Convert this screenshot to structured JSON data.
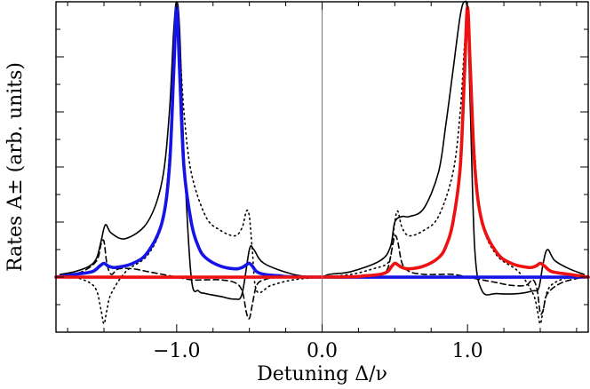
{
  "chart_data": {
    "type": "line",
    "title": "",
    "xlabel": "Detuning Δ/ν",
    "ylabel": "Rates A± (arb. units)",
    "xlim": [
      -1.83,
      1.83
    ],
    "ylim": [
      -0.2,
      1.0
    ],
    "x_ticks": [
      {
        "value": -1.0,
        "label": "−1.0"
      },
      {
        "value": 0.0,
        "label": "0.0"
      },
      {
        "value": 1.0,
        "label": "1.0"
      }
    ],
    "x_minor_step": 0.25,
    "y_minor_step": 0.1,
    "zero_line": true,
    "grid": false,
    "legend": "none",
    "colors": {
      "blue": "#1414e6",
      "red": "#ee1111",
      "black": "#000000",
      "zero_line": "#777777"
    },
    "series": [
      {
        "style": "solid-black",
        "x": [
          -1.8,
          -1.7,
          -1.6,
          -1.55,
          -1.52,
          -1.49,
          -1.45,
          -1.35,
          -1.2,
          -1.1,
          -1.05,
          -1.02,
          -1.0,
          -0.98,
          -0.95,
          -0.9,
          -0.85,
          -0.8,
          -0.7,
          -0.6,
          -0.55,
          -0.5,
          -0.47,
          -0.4,
          -0.2,
          -0.05,
          0.0,
          0.05,
          0.2,
          0.4,
          0.47,
          0.5,
          0.55,
          0.6,
          0.7,
          0.8,
          0.85,
          0.9,
          0.95,
          0.98,
          1.0,
          1.02,
          1.05,
          1.1,
          1.2,
          1.35,
          1.45,
          1.49,
          1.52,
          1.55,
          1.6,
          1.7,
          1.8
        ],
        "y": [
          0.01,
          0.02,
          0.04,
          0.07,
          0.13,
          0.19,
          0.16,
          0.14,
          0.2,
          0.35,
          0.6,
          0.9,
          1.0,
          0.9,
          0.45,
          0.0,
          -0.05,
          -0.06,
          -0.07,
          -0.08,
          -0.06,
          0.1,
          0.1,
          0.05,
          0.01,
          0.0,
          0.0,
          0.01,
          0.02,
          0.06,
          0.11,
          0.2,
          0.22,
          0.22,
          0.25,
          0.38,
          0.55,
          0.75,
          0.95,
          1.0,
          0.95,
          0.6,
          0.1,
          -0.05,
          -0.06,
          -0.06,
          -0.05,
          -0.04,
          0.05,
          0.1,
          0.06,
          0.03,
          0.01
        ]
      },
      {
        "style": "dotted-black",
        "x": [
          -1.8,
          -1.7,
          -1.6,
          -1.55,
          -1.52,
          -1.5,
          -1.48,
          -1.45,
          -1.35,
          -1.2,
          -1.1,
          -1.05,
          -1.02,
          -1.0,
          -0.98,
          -0.95,
          -0.9,
          -0.8,
          -0.7,
          -0.6,
          -0.55,
          -0.52,
          -0.5,
          -0.48,
          -0.45,
          -0.35,
          -0.2,
          0.0,
          0.2,
          0.35,
          0.45,
          0.48,
          0.5,
          0.52,
          0.55,
          0.6,
          0.7,
          0.8,
          0.9,
          0.95,
          0.98,
          1.0,
          1.02,
          1.05,
          1.1,
          1.2,
          1.35,
          1.45,
          1.48,
          1.5,
          1.52,
          1.55,
          1.6,
          1.7,
          1.8
        ],
        "y": [
          0.01,
          0.0,
          -0.02,
          -0.05,
          -0.12,
          -0.17,
          -0.12,
          -0.06,
          0.02,
          0.08,
          0.2,
          0.45,
          0.8,
          0.95,
          0.85,
          0.6,
          0.38,
          0.22,
          0.17,
          0.15,
          0.18,
          0.24,
          0.22,
          0.1,
          -0.05,
          -0.03,
          -0.01,
          0.0,
          0.01,
          0.03,
          0.05,
          0.1,
          0.2,
          0.24,
          0.18,
          0.15,
          0.17,
          0.22,
          0.38,
          0.6,
          0.85,
          0.95,
          0.8,
          0.45,
          0.2,
          0.08,
          0.02,
          -0.06,
          -0.12,
          -0.17,
          -0.12,
          -0.05,
          -0.02,
          0.0,
          0.01
        ]
      },
      {
        "style": "dashed-black",
        "x": [
          -1.8,
          -1.65,
          -1.55,
          -1.52,
          -1.5,
          -1.48,
          -1.45,
          -1.4,
          -1.3,
          -1.2,
          -1.1,
          -1.0,
          -0.9,
          -0.8,
          -0.7,
          -0.6,
          -0.55,
          -0.52,
          -0.5,
          -0.48,
          -0.45,
          -0.4,
          -0.3,
          -0.1,
          0.0,
          0.1,
          0.3,
          0.4,
          0.45,
          0.48,
          0.5,
          0.52,
          0.55,
          0.6,
          0.7,
          0.8,
          0.9,
          1.0,
          1.1,
          1.2,
          1.3,
          1.4,
          1.45,
          1.48,
          1.5,
          1.52,
          1.55,
          1.65,
          1.8
        ],
        "y": [
          0.0,
          0.02,
          0.06,
          0.12,
          0.13,
          0.05,
          0.01,
          0.03,
          0.03,
          0.02,
          0.01,
          0.0,
          -0.01,
          -0.01,
          -0.01,
          -0.02,
          -0.05,
          -0.13,
          -0.15,
          -0.1,
          -0.03,
          -0.01,
          0.0,
          0.0,
          0.0,
          0.0,
          0.0,
          0.01,
          0.03,
          0.1,
          0.15,
          0.13,
          0.05,
          0.02,
          0.01,
          0.01,
          0.01,
          0.0,
          -0.01,
          -0.02,
          -0.03,
          -0.03,
          -0.01,
          -0.05,
          -0.13,
          -0.12,
          -0.06,
          -0.02,
          0.0
        ]
      },
      {
        "style": "blue",
        "x": [
          -1.83,
          -1.7,
          -1.58,
          -1.53,
          -1.5,
          -1.47,
          -1.42,
          -1.3,
          -1.2,
          -1.1,
          -1.05,
          -1.02,
          -1.0,
          -0.98,
          -0.95,
          -0.9,
          -0.85,
          -0.8,
          -0.7,
          -0.6,
          -0.55,
          -0.52,
          -0.5,
          -0.48,
          -0.45,
          -0.4,
          -0.3,
          0.0,
          1.83
        ],
        "y": [
          0.0,
          0.01,
          0.02,
          0.04,
          0.05,
          0.04,
          0.035,
          0.05,
          0.09,
          0.2,
          0.4,
          0.75,
          0.98,
          0.75,
          0.4,
          0.2,
          0.11,
          0.07,
          0.04,
          0.03,
          0.035,
          0.045,
          0.05,
          0.04,
          0.02,
          0.01,
          0.005,
          0.0,
          0.0
        ]
      },
      {
        "style": "red",
        "x": [
          -1.83,
          0.0,
          0.3,
          0.4,
          0.45,
          0.48,
          0.5,
          0.52,
          0.55,
          0.6,
          0.7,
          0.8,
          0.85,
          0.9,
          0.95,
          0.98,
          1.0,
          1.02,
          1.05,
          1.1,
          1.2,
          1.3,
          1.42,
          1.47,
          1.5,
          1.53,
          1.58,
          1.7,
          1.83
        ],
        "y": [
          0.0,
          0.0,
          0.005,
          0.01,
          0.02,
          0.04,
          0.05,
          0.045,
          0.035,
          0.03,
          0.04,
          0.07,
          0.11,
          0.2,
          0.4,
          0.75,
          0.98,
          0.75,
          0.4,
          0.2,
          0.09,
          0.05,
          0.035,
          0.04,
          0.05,
          0.04,
          0.02,
          0.01,
          0.0
        ]
      }
    ]
  }
}
